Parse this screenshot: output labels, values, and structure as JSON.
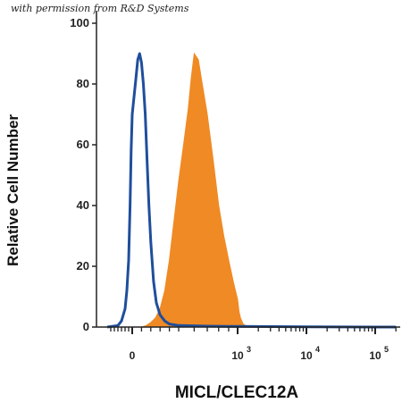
{
  "watermark": "with permission from R&D Systems",
  "chart_data": {
    "type": "area",
    "ylabel": "Relative Cell Number",
    "xlabel": "MICL/CLEC12A",
    "ylim": [
      0,
      100
    ],
    "xscale": "biexponential",
    "yticks": [
      0,
      20,
      40,
      60,
      80,
      100
    ],
    "xticks": [
      {
        "base": "0",
        "exp": ""
      },
      {
        "base": "10",
        "exp": "3"
      },
      {
        "base": "10",
        "exp": "4"
      },
      {
        "base": "10",
        "exp": "5"
      }
    ],
    "series": [
      {
        "style": "filled",
        "color": "#f08a24",
        "x": [
          100,
          150,
          200,
          250,
          300,
          350,
          400,
          450,
          500,
          530,
          560,
          580,
          600,
          630,
          660,
          700,
          750,
          800,
          850,
          900,
          950,
          1000,
          1050,
          1100,
          1150,
          1200,
          1300,
          1500,
          2000,
          10000,
          100000,
          200000
        ],
        "y": [
          0,
          0.5,
          1.5,
          3,
          6,
          12,
          22,
          35,
          48,
          60,
          72,
          82,
          90,
          88,
          80,
          70,
          55,
          40,
          30,
          22,
          15,
          9,
          5,
          3,
          2,
          1,
          0.5,
          0.2,
          0,
          0,
          0,
          0
        ]
      },
      {
        "style": "line",
        "color": "#1f4e9c",
        "x": [
          -700,
          -400,
          -300,
          -200,
          -150,
          -100,
          -60,
          -30,
          0,
          20,
          40,
          60,
          80,
          100,
          120,
          140,
          160,
          180,
          200,
          230,
          260,
          300,
          350,
          400,
          500,
          700,
          1000,
          10000,
          100000,
          200000
        ],
        "y": [
          0,
          0.5,
          2,
          6,
          12,
          22,
          40,
          58,
          70,
          76,
          82,
          88,
          90,
          87,
          80,
          70,
          55,
          40,
          28,
          15,
          8,
          4,
          2,
          1,
          0.5,
          0.3,
          0.2,
          0.1,
          0,
          0
        ]
      }
    ]
  }
}
